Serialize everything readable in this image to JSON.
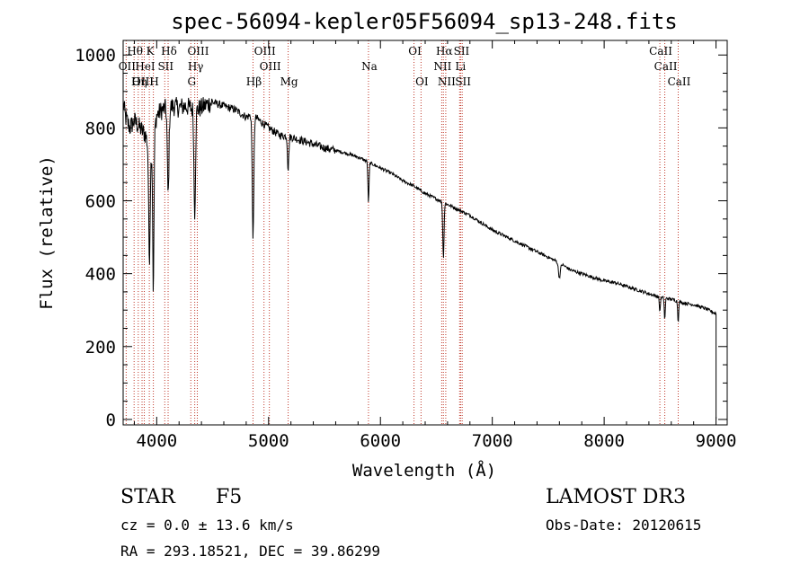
{
  "chart_data": {
    "type": "line",
    "title": "spec-56094-kepler05F56094_sp13-248.fits",
    "xlabel": "Wavelength (Å)",
    "ylabel": "Flux (relative)",
    "xlim": [
      3700,
      9100
    ],
    "ylim": [
      -15,
      1040
    ],
    "xticks": [
      4000,
      5000,
      6000,
      7000,
      8000,
      9000
    ],
    "yticks": [
      0,
      200,
      400,
      600,
      800,
      1000
    ],
    "spectrum_anchors": [
      [
        3700,
        870
      ],
      [
        3720,
        830
      ],
      [
        3760,
        800
      ],
      [
        3800,
        820
      ],
      [
        3850,
        800
      ],
      [
        3900,
        780
      ],
      [
        3950,
        720
      ],
      [
        4000,
        835
      ],
      [
        4050,
        850
      ],
      [
        4100,
        855
      ],
      [
        4150,
        860
      ],
      [
        4200,
        855
      ],
      [
        4250,
        860
      ],
      [
        4300,
        855
      ],
      [
        4350,
        850
      ],
      [
        4400,
        855
      ],
      [
        4450,
        865
      ],
      [
        4500,
        870
      ],
      [
        4550,
        865
      ],
      [
        4600,
        860
      ],
      [
        4650,
        855
      ],
      [
        4700,
        850
      ],
      [
        4750,
        840
      ],
      [
        4800,
        830
      ],
      [
        4850,
        835
      ],
      [
        4900,
        825
      ],
      [
        5000,
        800
      ],
      [
        5100,
        780
      ],
      [
        5200,
        775
      ],
      [
        5300,
        765
      ],
      [
        5400,
        755
      ],
      [
        5500,
        745
      ],
      [
        5600,
        738
      ],
      [
        5700,
        730
      ],
      [
        5800,
        720
      ],
      [
        5900,
        705
      ],
      [
        6000,
        690
      ],
      [
        6100,
        675
      ],
      [
        6200,
        655
      ],
      [
        6300,
        640
      ],
      [
        6400,
        620
      ],
      [
        6500,
        605
      ],
      [
        6600,
        590
      ],
      [
        6700,
        575
      ],
      [
        6800,
        560
      ],
      [
        6900,
        540
      ],
      [
        7000,
        520
      ],
      [
        7100,
        505
      ],
      [
        7200,
        490
      ],
      [
        7300,
        475
      ],
      [
        7400,
        460
      ],
      [
        7500,
        445
      ],
      [
        7600,
        430
      ],
      [
        7700,
        410
      ],
      [
        7800,
        400
      ],
      [
        7900,
        390
      ],
      [
        8000,
        380
      ],
      [
        8100,
        375
      ],
      [
        8200,
        365
      ],
      [
        8300,
        355
      ],
      [
        8400,
        345
      ],
      [
        8500,
        335
      ],
      [
        8600,
        330
      ],
      [
        8700,
        320
      ],
      [
        8800,
        315
      ],
      [
        8900,
        305
      ],
      [
        9000,
        290
      ]
    ],
    "absorption_dips": [
      {
        "x": 3934,
        "depth": 300,
        "width": 9
      },
      {
        "x": 3970,
        "depth": 420,
        "width": 8
      },
      {
        "x": 4102,
        "depth": 240,
        "width": 10
      },
      {
        "x": 4340,
        "depth": 280,
        "width": 10
      },
      {
        "x": 4861,
        "depth": 330,
        "width": 10
      },
      {
        "x": 5175,
        "depth": 90,
        "width": 8
      },
      {
        "x": 5893,
        "depth": 110,
        "width": 7
      },
      {
        "x": 6563,
        "depth": 150,
        "width": 8
      },
      {
        "x": 7600,
        "depth": 40,
        "width": 12
      },
      {
        "x": 8498,
        "depth": 40,
        "width": 6
      },
      {
        "x": 8542,
        "depth": 60,
        "width": 6
      },
      {
        "x": 8662,
        "depth": 55,
        "width": 6
      }
    ],
    "line_markers": [
      {
        "label": "Hθ",
        "x": 3798,
        "row": 0
      },
      {
        "label": "K",
        "x": 3934,
        "row": 0
      },
      {
        "label": "Hδ",
        "x": 4102,
        "row": 0
      },
      {
        "label": "OIII",
        "x": 4363,
        "row": 0
      },
      {
        "label": "OIII",
        "x": 4959,
        "row": 0
      },
      {
        "label": "OI",
        "x": 6300,
        "row": 0
      },
      {
        "label": "Hα",
        "x": 6563,
        "row": 0
      },
      {
        "label": "SII",
        "x": 6717,
        "row": 0
      },
      {
        "label": "CaII",
        "x": 8498,
        "row": 0
      },
      {
        "label": "OII",
        "x": 3727,
        "row": 1
      },
      {
        "label": "HeI",
        "x": 3889,
        "row": 1
      },
      {
        "label": "SII",
        "x": 4072,
        "row": 1
      },
      {
        "label": "Hγ",
        "x": 4340,
        "row": 1
      },
      {
        "label": "OIII",
        "x": 5007,
        "row": 1
      },
      {
        "label": "Na",
        "x": 5893,
        "row": 1
      },
      {
        "label": "NII",
        "x": 6548,
        "row": 1
      },
      {
        "label": "Li",
        "x": 6708,
        "row": 1
      },
      {
        "label": "CaII",
        "x": 8542,
        "row": 1
      },
      {
        "label": "OIII",
        "x": 3869,
        "row": 2
      },
      {
        "label": "Hη",
        "x": 3835,
        "row": 2
      },
      {
        "label": "H",
        "x": 3970,
        "row": 2
      },
      {
        "label": "G",
        "x": 4305,
        "row": 2
      },
      {
        "label": "Hβ",
        "x": 4861,
        "row": 2
      },
      {
        "label": "Mg",
        "x": 5175,
        "row": 2
      },
      {
        "label": "OI",
        "x": 6363,
        "row": 2
      },
      {
        "label": "NII",
        "x": 6584,
        "row": 2
      },
      {
        "label": "SII",
        "x": 6731,
        "row": 2
      },
      {
        "label": "CaII",
        "x": 8662,
        "row": 2
      }
    ]
  },
  "info": {
    "class": "STAR",
    "subclass": "F5",
    "survey": "LAMOST DR3",
    "cz": "cz = 0.0 ± 13.6 km/s",
    "obs_date": "Obs-Date: 20120615",
    "coords": "RA = 293.18521, DEC =  39.86299"
  }
}
